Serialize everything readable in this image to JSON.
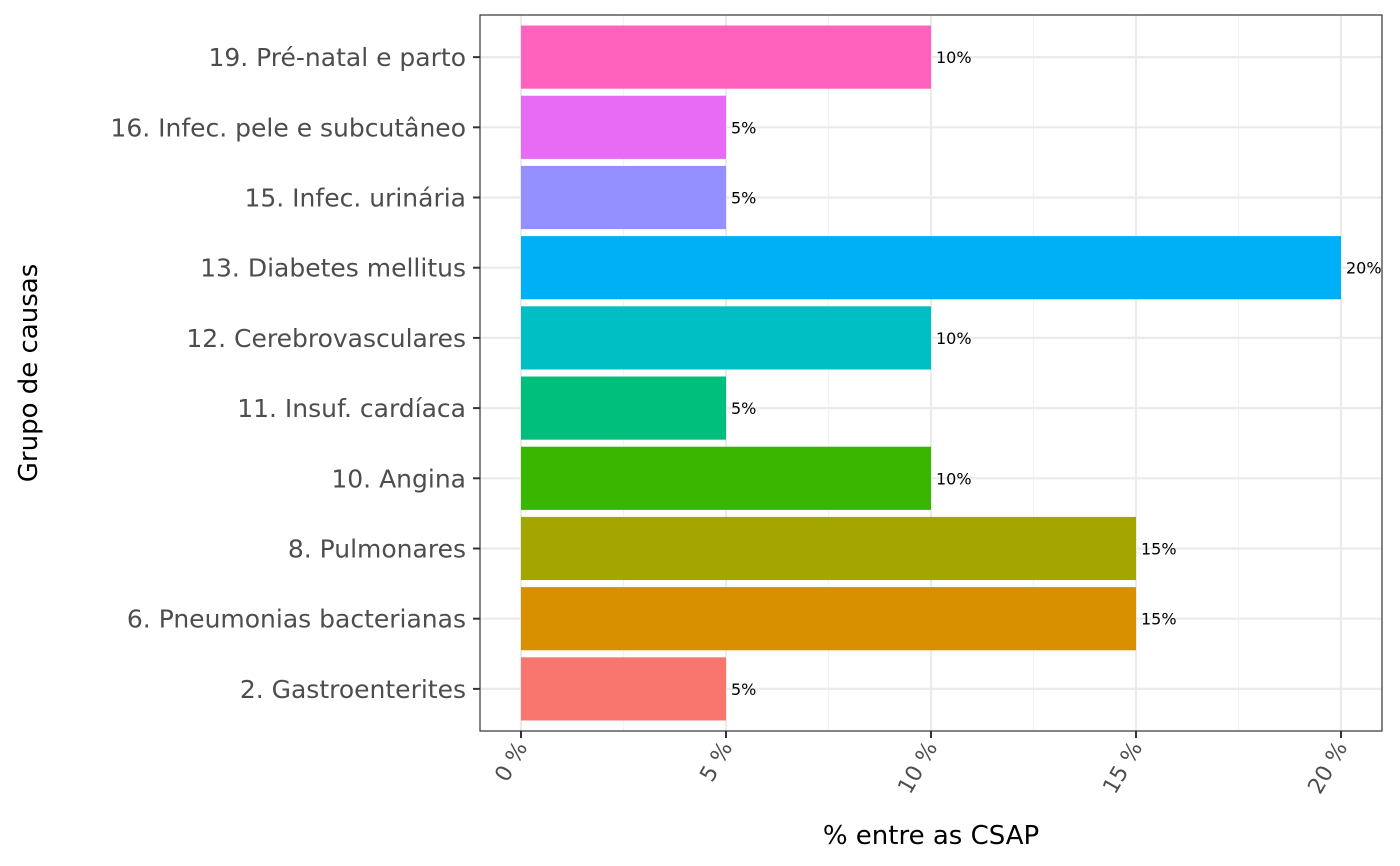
{
  "chart_data": {
    "type": "bar",
    "orientation": "horizontal",
    "title": "",
    "xlabel": "% entre as CSAP",
    "ylabel": "Grupo de causas",
    "xlim": [
      -1,
      21
    ],
    "x_ticks": [
      0,
      5,
      10,
      15,
      20
    ],
    "x_tick_labels": [
      "0 %",
      "5 %",
      "10 %",
      "15 %",
      "20 %"
    ],
    "grid": true,
    "legend": "none",
    "categories": [
      "2. Gastroenterites",
      "6. Pneumonias bacterianas",
      "8. Pulmonares",
      "10. Angina",
      "11. Insuf. cardíaca",
      "12. Cerebrovasculares",
      "13. Diabetes mellitus",
      "15. Infec. urinária",
      "16. Infec. pele e subcutâneo",
      "19. Pré-natal e parto"
    ],
    "values": [
      5,
      15,
      15,
      10,
      5,
      10,
      20,
      5,
      5,
      10
    ],
    "data_labels": [
      "5%",
      "15%",
      "15%",
      "10%",
      "5%",
      "10%",
      "20%",
      "5%",
      "5%",
      "10%"
    ],
    "colors": [
      "#F8766D",
      "#D89000",
      "#A3A500",
      "#39B600",
      "#00BF7D",
      "#00BFC4",
      "#00B0F6",
      "#9590FF",
      "#E76BF3",
      "#FF62BC"
    ]
  }
}
